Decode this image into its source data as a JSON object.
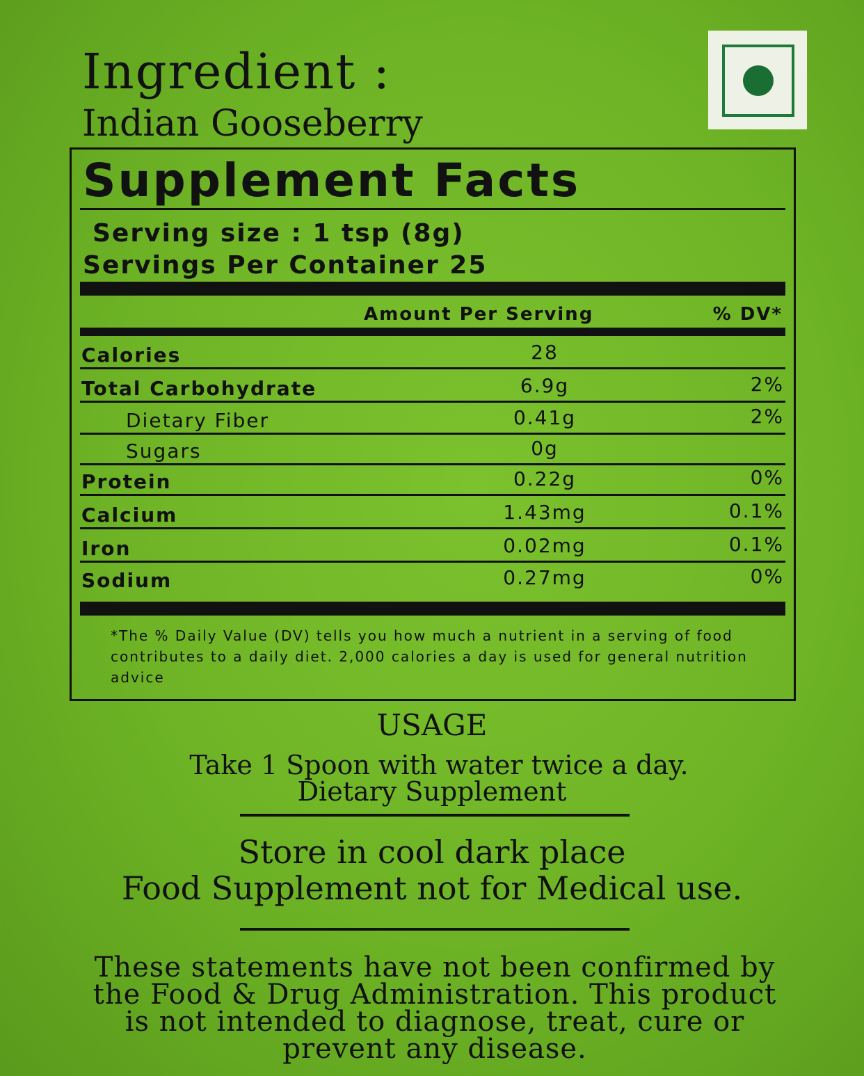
{
  "ingredient": {
    "title": "Ingredient :",
    "value": "Indian Gooseberry"
  },
  "veg_mark": {
    "icon": "vegetarian-mark-icon",
    "colors": {
      "dot": "#1a6e34",
      "border": "#1f7a3a"
    }
  },
  "facts": {
    "title": "Supplement Facts",
    "serving_size": "Serving size :  1 tsp (8g)",
    "servings_per_container": "Servings Per Container 25",
    "col_amount": "Amount Per Serving",
    "col_dv": "% DV*",
    "rows": [
      {
        "label": "Calories",
        "amount": "28",
        "dv": ""
      },
      {
        "label": "Total Carbohydrate",
        "amount": "6.9g",
        "dv": "2%"
      },
      {
        "label": "Dietary Fiber",
        "amount": "0.41g",
        "dv": "2%"
      },
      {
        "label": "Sugars",
        "amount": "0g",
        "dv": ""
      },
      {
        "label": "Protein",
        "amount": "0.22g",
        "dv": "0%"
      },
      {
        "label": "Calcium",
        "amount": "1.43mg",
        "dv": "0.1%"
      },
      {
        "label": "Iron",
        "amount": "0.02mg",
        "dv": "0.1%"
      },
      {
        "label": "Sodium",
        "amount": "0.27mg",
        "dv": "0%"
      }
    ],
    "footnote": "*The % Daily Value (DV) tells you how much a nutrient in a serving of food contributes to a daily diet. 2,000 calories a day is used for general nutrition advice"
  },
  "usage": {
    "title": "USAGE",
    "text": "Take 1 Spoon  with water twice a day.",
    "sub": "Dietary Supplement"
  },
  "storage": {
    "line1": "Store in cool dark place",
    "line2": "Food Supplement not for Medical use."
  },
  "disclaimer": "These statements have not been confirmed by the Food & Drug Administration. This product is not intended to diagnose, treat, cure or prevent any disease.",
  "colors": {
    "background": "#6db325",
    "text": "#111111"
  }
}
